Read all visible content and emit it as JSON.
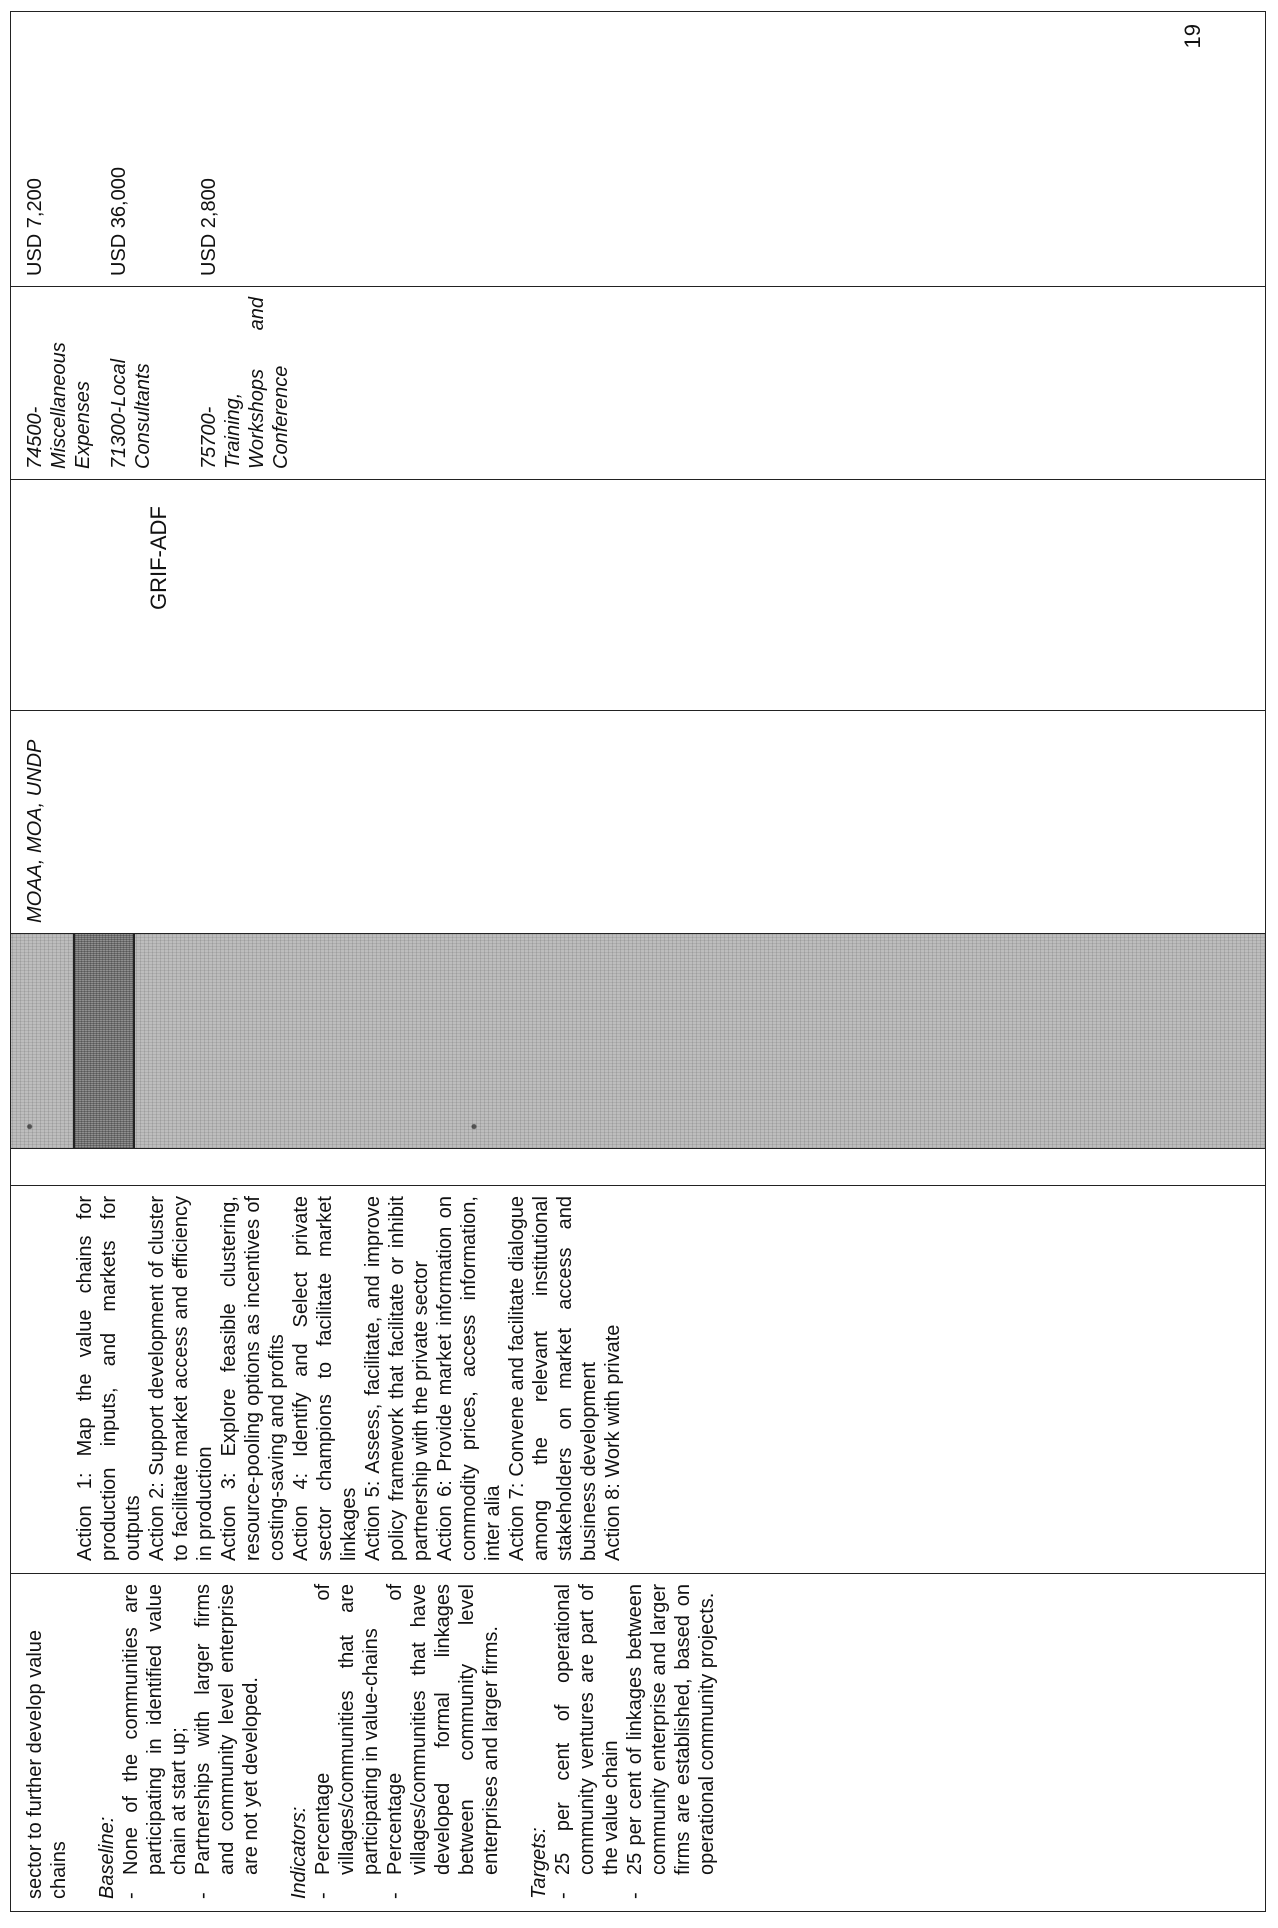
{
  "document": {
    "page_number": "19"
  },
  "col1": {
    "heading": "sector to further develop value chains",
    "baseline_label": "Baseline:",
    "baseline_items": [
      "None of the communities are participating in identified value chain at start up;",
      "Partnerships with larger firms and community level enterprise are not yet developed."
    ],
    "indicators_label": "Indicators:",
    "indicator_items": [
      "Percentage of villages/communities that are participating in value-chains",
      "Percentage of villages/communities that have developed formal linkages between community level enterprises and larger firms."
    ],
    "targets_label": "Targets:",
    "target_items": [
      "25 per cent of operational community ventures are part of the value chain",
      "25 per cent of linkages between community enterprise and larger firms are established, based on operational community projects."
    ]
  },
  "col2": {
    "actions": [
      "Action 1: Map the value chains for production inputs, and markets for outputs",
      "Action 2: Support development of cluster to facilitate market access and efficiency in production",
      "Action 3: Explore feasible clustering, resource-pooling options as incentives of costing-saving and profits",
      "Action 4: Identify and Select private sector champions to facilitate market linkages",
      "Action 5: Assess, facilitate, and improve policy framework that facilitate or inhibit partnership with the private sector",
      "Action 6: Provide market information on commodity prices, access information, inter alia",
      "Action 7: Convene and facilitate dialogue among the relevant institutional stakeholders on market access and business development",
      "Action 8: Work with private"
    ]
  },
  "col4": {
    "responsible": "MOAA, MOA, UNDP"
  },
  "col5": {
    "fund": "GRIF-ADF"
  },
  "budget": [
    {
      "code": "74500-",
      "description": "Miscellaneous Expenses",
      "amount": "USD 7,200"
    },
    {
      "code": "71300-Local Consultants",
      "description": "",
      "amount": "USD 36,000"
    },
    {
      "code": "75700-",
      "description": "Training, Workshops and Conference",
      "amount": "USD 2,800"
    }
  ]
}
